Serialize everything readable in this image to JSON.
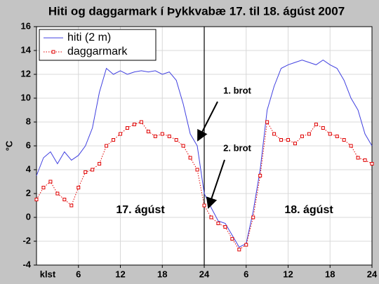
{
  "chart_data": {
    "type": "line",
    "title": "Hiti og daggarmark í Þykkvabæ 17. til 18. ágúst 2007",
    "ylabel": "°C",
    "xlabel": "klst",
    "x": [
      0,
      1,
      2,
      3,
      4,
      5,
      6,
      7,
      8,
      9,
      10,
      11,
      12,
      13,
      14,
      15,
      16,
      17,
      18,
      19,
      20,
      21,
      22,
      23,
      24,
      25,
      26,
      27,
      28,
      29,
      30,
      31,
      32,
      33,
      34,
      35,
      36,
      37,
      38,
      39,
      40,
      41,
      42,
      43,
      44,
      45,
      46,
      47,
      48
    ],
    "series": [
      {
        "name": "hiti (2 m)",
        "color": "#4040e0",
        "marker": false,
        "values": [
          3.5,
          5.0,
          5.5,
          4.5,
          5.5,
          4.8,
          5.2,
          6.0,
          7.5,
          10.5,
          12.5,
          12.0,
          12.3,
          12.0,
          12.2,
          12.3,
          12.2,
          12.3,
          12.0,
          12.2,
          11.5,
          9.5,
          7.0,
          6.0,
          2.0,
          0.8,
          -0.3,
          -0.5,
          -1.5,
          -2.5,
          -2.2,
          0.5,
          4.0,
          9.0,
          11.0,
          12.5,
          12.8,
          13.0,
          13.2,
          13.0,
          12.8,
          13.2,
          12.8,
          12.5,
          11.5,
          10.0,
          9.0,
          7.0,
          6.0
        ]
      },
      {
        "name": "daggarmark",
        "color": "#e00000",
        "marker": true,
        "values": [
          1.5,
          2.5,
          3.0,
          2.0,
          1.5,
          1.0,
          2.5,
          3.8,
          4.0,
          4.5,
          6.0,
          6.5,
          7.0,
          7.5,
          7.8,
          8.0,
          7.2,
          6.8,
          7.0,
          6.8,
          6.5,
          6.0,
          5.0,
          4.0,
          1.0,
          0.0,
          -0.5,
          -0.8,
          -1.8,
          -2.7,
          -2.3,
          0.0,
          3.5,
          8.0,
          7.0,
          6.5,
          6.5,
          6.2,
          6.8,
          7.0,
          7.8,
          7.5,
          7.0,
          6.8,
          6.5,
          6.0,
          5.0,
          4.8,
          4.5
        ]
      }
    ],
    "xlim": [
      0,
      48
    ],
    "xticks": [
      6,
      12,
      18,
      24,
      {
        "value": 30,
        "label": "6"
      },
      {
        "value": 36,
        "label": "12"
      },
      {
        "value": 42,
        "label": "18"
      },
      {
        "value": 48,
        "label": "24"
      }
    ],
    "ylim": [
      -4,
      16
    ],
    "yticks": [
      -4,
      -2,
      0,
      2,
      4,
      6,
      8,
      10,
      12,
      14,
      16
    ],
    "grid": true,
    "vline": 24,
    "legend": "upper left",
    "annotations": [
      "1. brot",
      "2. brot"
    ],
    "day_labels": [
      "17. ágúst",
      "18. ágúst"
    ]
  }
}
